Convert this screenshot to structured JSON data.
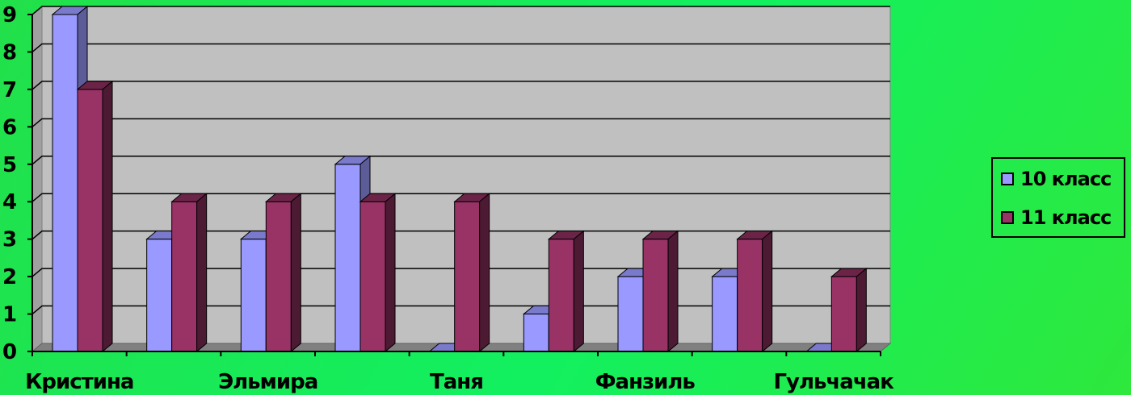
{
  "chart_data": {
    "type": "bar",
    "categories": [
      "Кристина",
      "",
      "Эльмира",
      "",
      "Таня",
      "",
      "Фанзиль",
      "",
      "Гульчачак"
    ],
    "x_tick_labels": [
      "Кристина",
      "Эльмира",
      "Таня",
      "Фанзиль",
      "Гульчачак"
    ],
    "y_tick_labels": [
      "0",
      "1",
      "2",
      "3",
      "4",
      "5",
      "6",
      "7",
      "8",
      "9"
    ],
    "series": [
      {
        "name": "10 класс",
        "values": [
          9,
          3,
          3,
          5,
          0,
          1,
          2,
          2,
          0
        ],
        "color": "#9999ff",
        "side_color": "#5c5c99",
        "top_color": "#7a7acc"
      },
      {
        "name": "11 класс",
        "values": [
          7,
          4,
          4,
          4,
          4,
          3,
          3,
          3,
          2
        ],
        "color": "#993366",
        "side_color": "#4d1a33",
        "top_color": "#6b2447"
      }
    ],
    "ylim": [
      0,
      9
    ],
    "grid": true,
    "plot_background": "#c0c0c0",
    "legend_position": "right",
    "title": "",
    "xlabel": "",
    "ylabel": ""
  }
}
